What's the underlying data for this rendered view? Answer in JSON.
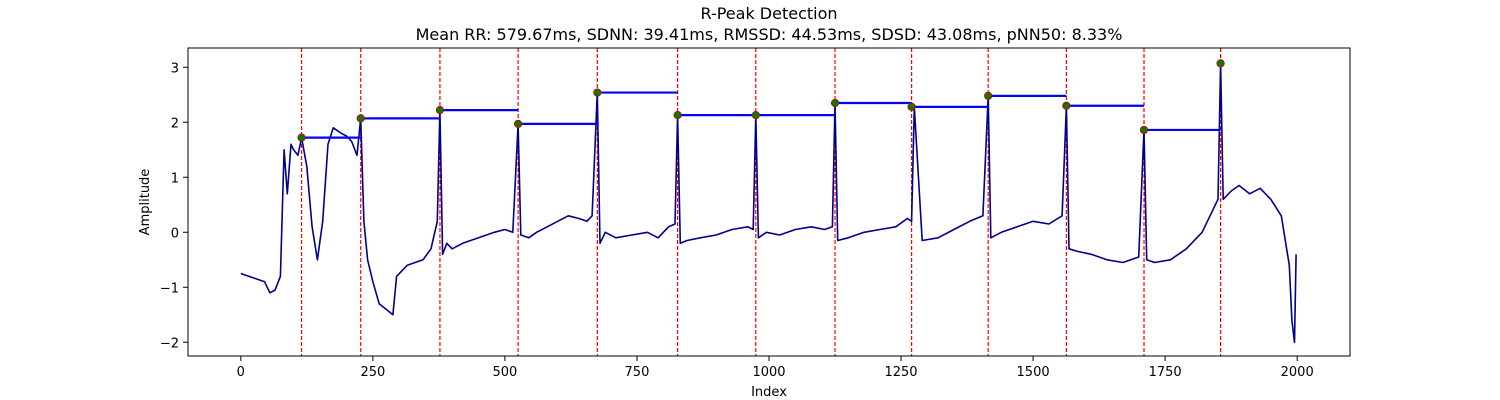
{
  "chart_data": {
    "type": "line",
    "title": "R-Peak Detection",
    "subtitle": "Mean RR: 579.67ms, SDNN: 39.41ms, RMSSD: 44.53ms, SDSD: 43.08ms, pNN50: 8.33%",
    "xlabel": "Index",
    "ylabel": "Amplitude",
    "xlim": [
      -100,
      2100
    ],
    "ylim": [
      -2.25,
      3.35
    ],
    "xticks": [
      0,
      250,
      500,
      750,
      1000,
      1250,
      1500,
      1750,
      2000
    ],
    "yticks": [
      -2,
      -1,
      0,
      1,
      2,
      3
    ],
    "grid": false,
    "colors": {
      "signal": "#00008b",
      "peak_lines": "#ff0000",
      "peak_markers_fill": "#008000",
      "peak_markers_edge": "#cc0000",
      "rr_segments": "#0000ff"
    },
    "peaks": {
      "x": [
        115,
        227,
        377,
        525,
        675,
        827,
        975,
        1125,
        1270,
        1415,
        1563,
        1710,
        1855
      ],
      "y": [
        1.72,
        2.07,
        2.22,
        1.97,
        2.54,
        2.13,
        2.13,
        2.35,
        2.28,
        2.48,
        2.3,
        1.86,
        3.07
      ]
    },
    "signal": {
      "x": [
        0,
        15,
        30,
        45,
        55,
        65,
        75,
        82,
        88,
        95,
        100,
        108,
        115,
        125,
        135,
        145,
        155,
        165,
        175,
        190,
        200,
        210,
        220,
        227,
        233,
        240,
        250,
        262,
        275,
        288,
        295,
        305,
        315,
        330,
        345,
        360,
        372,
        377,
        382,
        390,
        400,
        420,
        450,
        480,
        500,
        515,
        525,
        530,
        545,
        560,
        580,
        600,
        620,
        640,
        655,
        665,
        675,
        680,
        690,
        710,
        740,
        770,
        790,
        810,
        822,
        827,
        832,
        845,
        870,
        900,
        930,
        960,
        970,
        975,
        980,
        995,
        1020,
        1050,
        1080,
        1105,
        1120,
        1125,
        1130,
        1150,
        1180,
        1210,
        1240,
        1262,
        1270,
        1275,
        1290,
        1320,
        1350,
        1380,
        1405,
        1415,
        1420,
        1440,
        1470,
        1500,
        1530,
        1555,
        1563,
        1568,
        1585,
        1610,
        1640,
        1670,
        1700,
        1710,
        1715,
        1730,
        1760,
        1790,
        1820,
        1840,
        1850,
        1855,
        1860,
        1875,
        1890,
        1910,
        1930,
        1950,
        1970,
        1985,
        1990,
        1995,
        1998
      ],
      "y": [
        -0.75,
        -0.8,
        -0.85,
        -0.9,
        -1.1,
        -1.05,
        -0.8,
        1.5,
        0.7,
        1.6,
        1.5,
        1.4,
        1.72,
        1.2,
        0.1,
        -0.5,
        0.2,
        1.6,
        1.9,
        1.8,
        1.75,
        1.65,
        1.4,
        2.07,
        0.2,
        -0.5,
        -0.9,
        -1.3,
        -1.4,
        -1.5,
        -0.8,
        -0.7,
        -0.6,
        -0.55,
        -0.5,
        -0.3,
        0.2,
        2.22,
        -0.4,
        -0.2,
        -0.3,
        -0.2,
        -0.1,
        0.0,
        0.05,
        0.0,
        1.97,
        -0.05,
        -0.1,
        0.0,
        0.1,
        0.2,
        0.3,
        0.25,
        0.2,
        0.3,
        2.54,
        -0.2,
        0.0,
        -0.1,
        -0.05,
        0.0,
        -0.1,
        0.1,
        0.15,
        2.13,
        -0.2,
        -0.15,
        -0.1,
        -0.05,
        0.05,
        0.1,
        0.05,
        2.13,
        -0.1,
        0.0,
        -0.05,
        0.05,
        0.1,
        0.05,
        0.1,
        2.35,
        -0.15,
        -0.1,
        0.0,
        0.05,
        0.1,
        0.25,
        0.2,
        2.28,
        -0.15,
        -0.1,
        0.05,
        0.2,
        0.3,
        2.48,
        -0.1,
        0.0,
        0.1,
        0.2,
        0.15,
        0.3,
        2.3,
        -0.3,
        -0.35,
        -0.4,
        -0.5,
        -0.55,
        -0.45,
        1.86,
        -0.5,
        -0.55,
        -0.5,
        -0.3,
        0.0,
        0.4,
        0.6,
        3.07,
        0.6,
        0.75,
        0.85,
        0.7,
        0.8,
        0.6,
        0.3,
        -0.6,
        -1.6,
        -2.0,
        -0.4
      ]
    }
  }
}
